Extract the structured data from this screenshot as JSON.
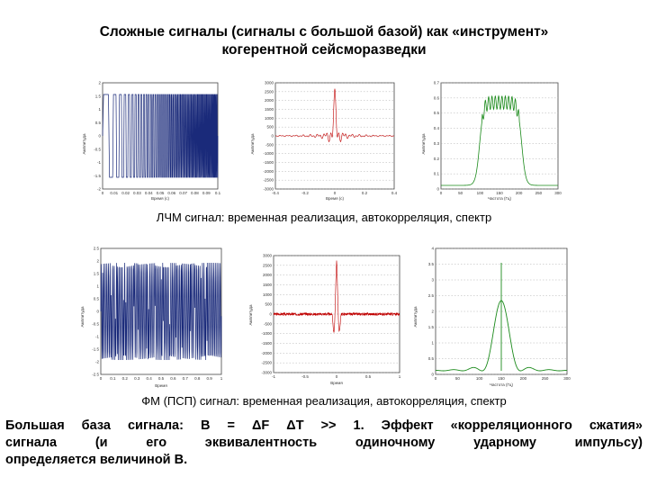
{
  "title": {
    "line1": "Сложные сигналы (сигналы с большой базой) как «инструмент»",
    "line2": "когерентной сейсморазведки"
  },
  "captions": {
    "lfm": "ЛЧМ сигнал: временная реализация, автокорреляция, спектр",
    "fm": "ФМ (ПСП) сигнал: временная реализация, автокорреляция, спектр"
  },
  "conclusion": {
    "line1": "Большая база сигнала: B = ΔF ΔT >> 1. Эффект «корреляционного сжатия»",
    "line2": "сигнала (и его эквивалентность одиночному ударному импульсу)",
    "line3": "определяется величиной B."
  },
  "colors": {
    "time_signal": "#1a2a7a",
    "autocorrelation": "#c00000",
    "spectrum": "#1a8a1a"
  },
  "plots": {
    "lfm_time": {
      "yticks": [
        "2",
        "1.5",
        "1",
        "0.5",
        "0",
        "-0.5",
        "-1",
        "-1.5",
        "-2"
      ],
      "xticks": [
        "0",
        "0.01",
        "0.02",
        "0.03",
        "0.04",
        "0.05",
        "0.06",
        "0.07",
        "0.08",
        "0.09",
        "0.1"
      ],
      "ylabel": "Амплитуда",
      "xlabel": "Время (с)"
    },
    "lfm_acf": {
      "yticks": [
        "3000",
        "2500",
        "2000",
        "1500",
        "1000",
        "500",
        "0",
        "-500",
        "-1000",
        "-1500",
        "-2000",
        "-2500",
        "-3000"
      ],
      "xticks": [
        "-0.4",
        "-0.2",
        "0",
        "0.2",
        "0.4"
      ],
      "ylabel": "Амплитуда",
      "xlabel": "Время (с)"
    },
    "lfm_spec": {
      "yticks": [
        "0.7",
        "0.6",
        "0.5",
        "0.4",
        "0.3",
        "0.2",
        "0.1",
        "0"
      ],
      "xticks": [
        "0",
        "50",
        "100",
        "150",
        "200",
        "250",
        "300"
      ],
      "ylabel": "Амплитуда",
      "xlabel": "Частота (Гц)"
    },
    "fm_time": {
      "yticks": [
        "2.5",
        "2",
        "1.5",
        "1",
        "0.5",
        "0",
        "-0.5",
        "-1",
        "-1.5",
        "-2",
        "-2.5"
      ],
      "xticks": [
        "0",
        "0.1",
        "0.2",
        "0.3",
        "0.4",
        "0.5",
        "0.6",
        "0.7",
        "0.8",
        "0.9",
        "1"
      ],
      "ylabel": "Амплитуда",
      "xlabel": "Время"
    },
    "fm_acf": {
      "yticks": [
        "3000",
        "2500",
        "2000",
        "1500",
        "1000",
        "500",
        "0",
        "-500",
        "-1000",
        "-1500",
        "-2000",
        "-2500",
        "-3000"
      ],
      "xticks": [
        "-1",
        "-0.5",
        "0",
        "0.5",
        "1"
      ],
      "ylabel": "Амплитуда",
      "xlabel": "Время"
    },
    "fm_spec": {
      "yticks": [
        "4",
        "3.5",
        "3",
        "2.5",
        "2",
        "1.5",
        "1",
        "0.5",
        "0"
      ],
      "xticks": [
        "0",
        "50",
        "100",
        "150",
        "200",
        "250",
        "300"
      ],
      "ylabel": "Амплитуда",
      "xlabel": "Частота (Гц)"
    }
  }
}
